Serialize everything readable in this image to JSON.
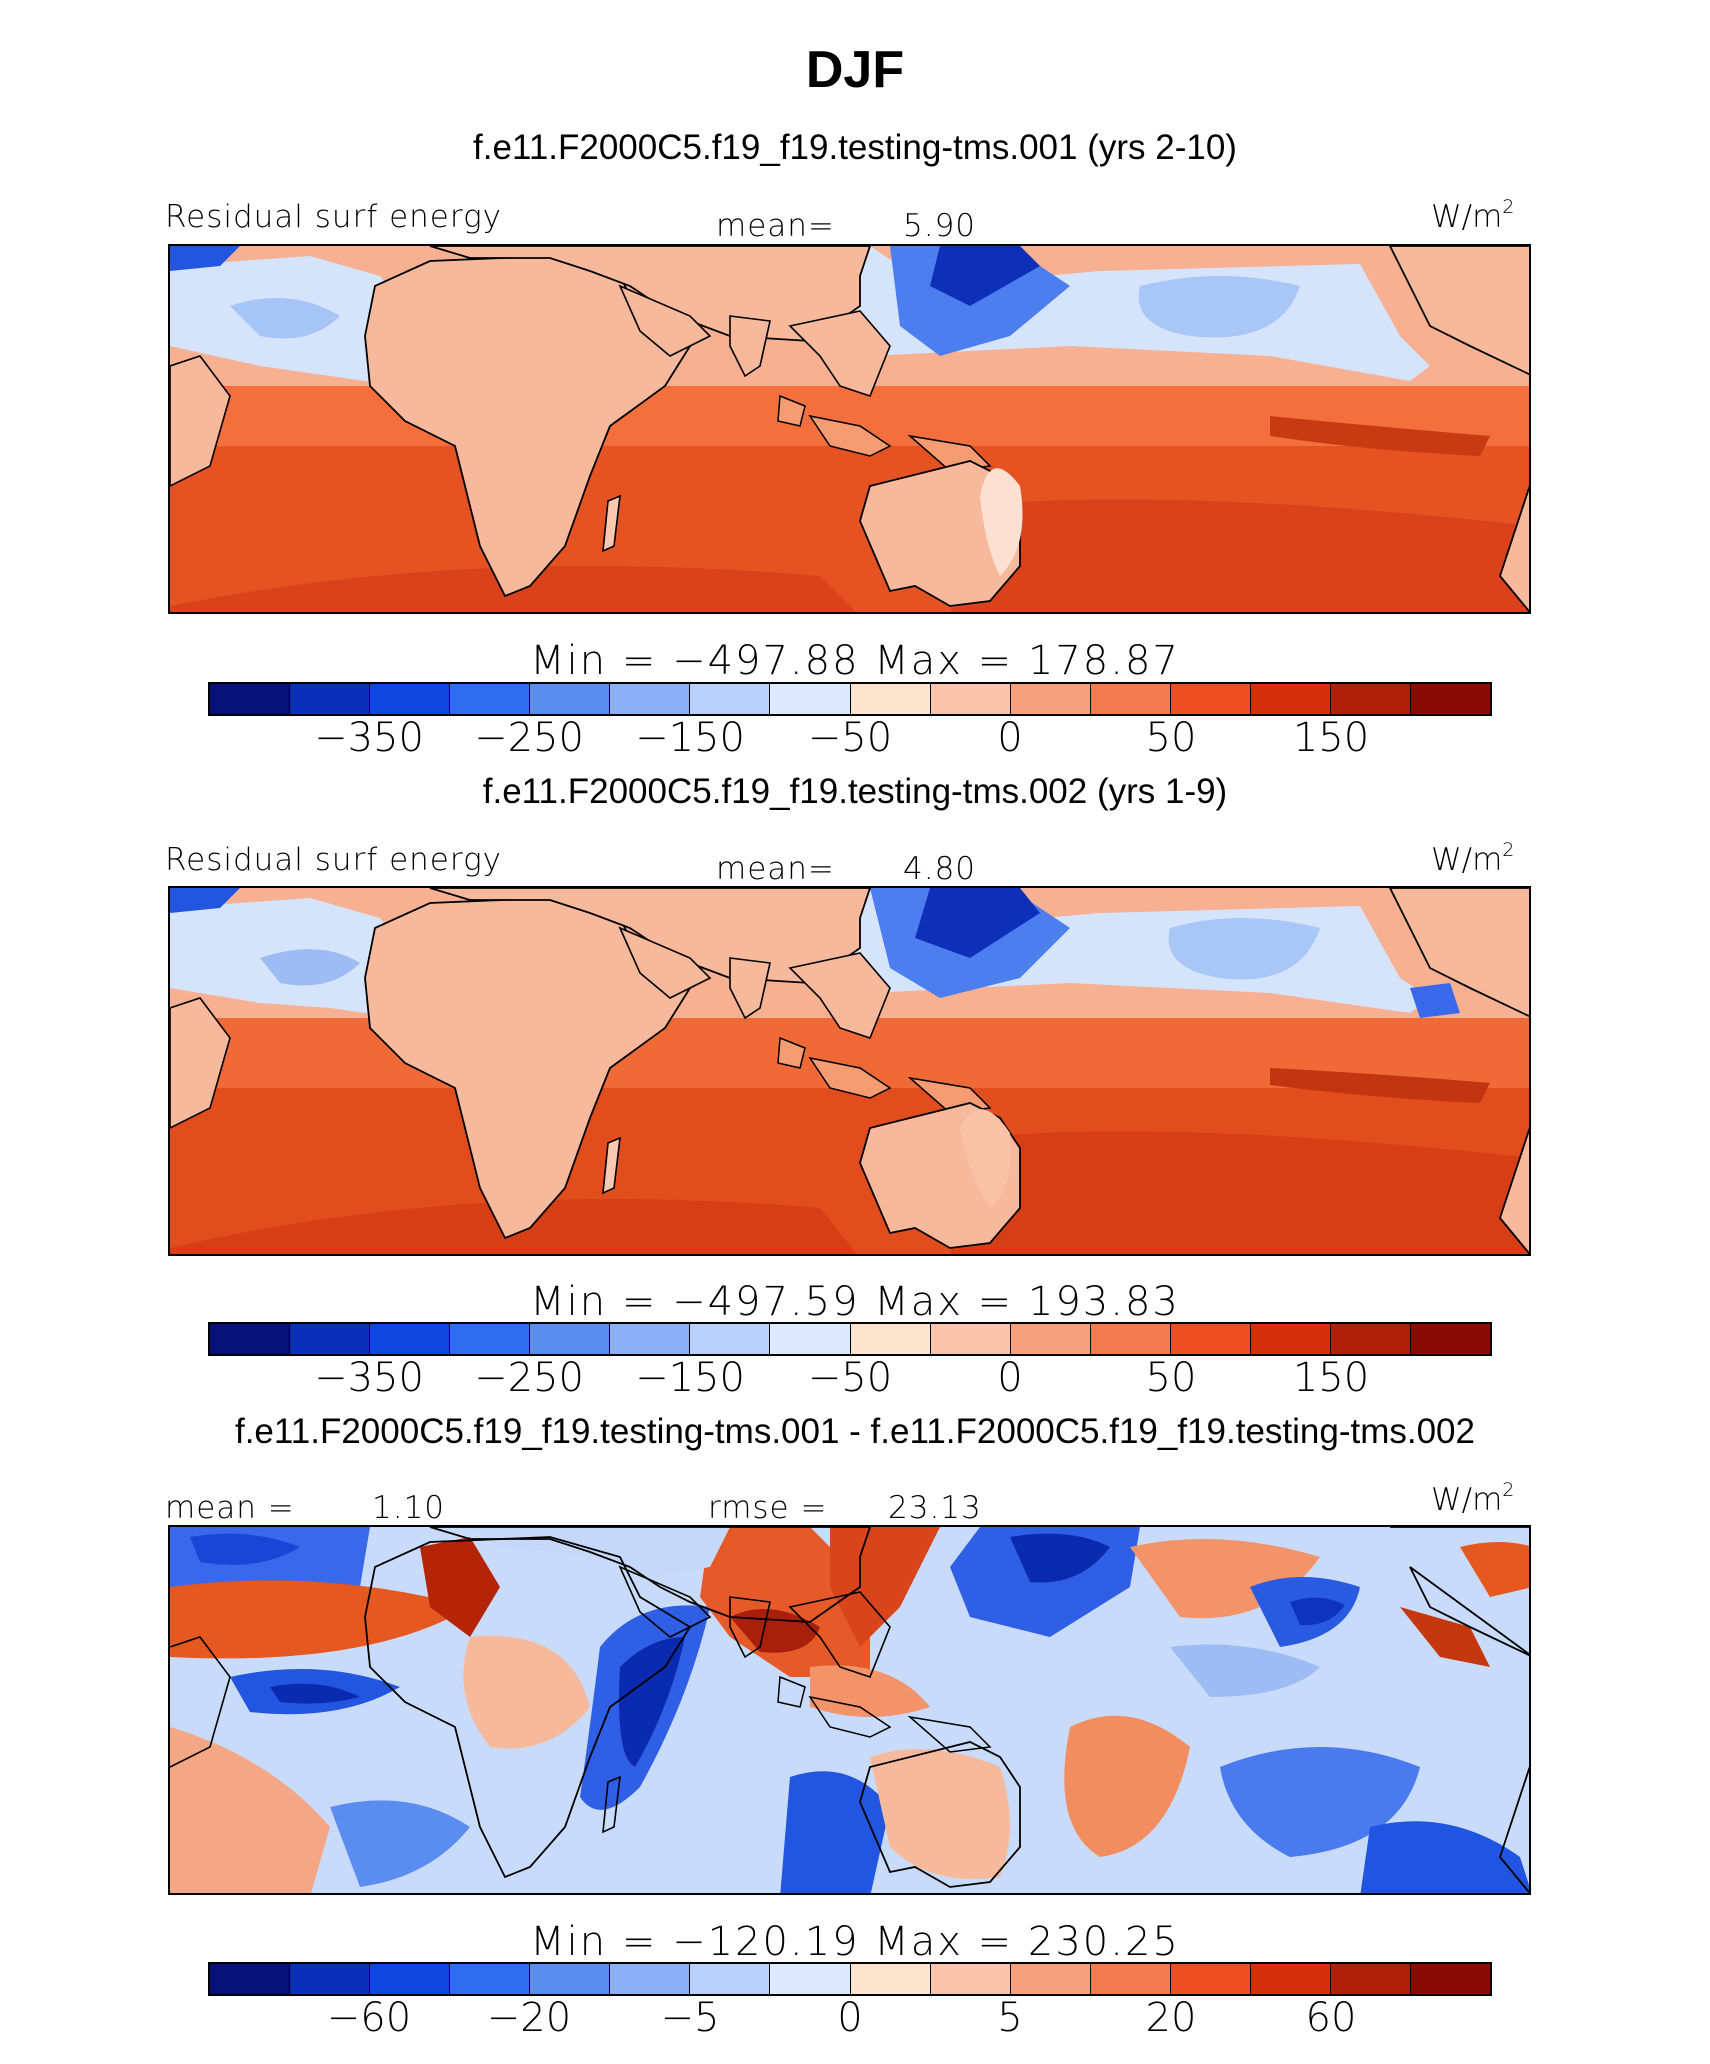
{
  "title": "DJF",
  "units": {
    "base": "W/m",
    "exp": "2"
  },
  "panels": [
    {
      "case": "f.e11.F2000C5.f19_f19.testing-tms.001 (yrs 2-10)",
      "variable": "Residual surf energy",
      "mean_label": "mean=",
      "mean_value": "5.90",
      "stats": "Min = −497.88 Max = 178.87",
      "colorbar_ticks": [
        "−350",
        "−250",
        "−150",
        "−50",
        "0",
        "50",
        "150"
      ]
    },
    {
      "case": "f.e11.F2000C5.f19_f19.testing-tms.002 (yrs 1-9)",
      "variable": "Residual surf energy",
      "mean_label": "mean=",
      "mean_value": "4.80",
      "stats": "Min = −497.59 Max = 193.83",
      "colorbar_ticks": [
        "−350",
        "−250",
        "−150",
        "−50",
        "0",
        "50",
        "150"
      ]
    },
    {
      "case": "f.e11.F2000C5.f19_f19.testing-tms.001 - f.e11.F2000C5.f19_f19.testing-tms.002",
      "mean_label": "mean =",
      "mean_value": "1.10",
      "rmse_label": "rmse =",
      "rmse_value": "23.13",
      "stats": "Min = −120.19 Max = 230.25",
      "colorbar_ticks": [
        "−60",
        "−20",
        "−5",
        "0",
        "5",
        "20",
        "60"
      ]
    }
  ],
  "colorbar_colors": [
    "#08107a",
    "#0a2fb8",
    "#0f47e0",
    "#2f6cf0",
    "#5b8cf0",
    "#8cb0f5",
    "#b8d0fa",
    "#dde9fc",
    "#fde4cf",
    "#f9c4a9",
    "#f7a07e",
    "#f47a4f",
    "#ed4f22",
    "#d42e0c",
    "#b01f0a",
    "#8a0b05"
  ],
  "field_colors": {
    "ocean_south": "#e04a1c",
    "ocean_eq": "#f06232",
    "ocean_mid": "#f8a887",
    "land": "#f7b99b",
    "land_dark": "#f29b74",
    "north_pale": "#d3e3fb",
    "north_blue": "#9dbef5",
    "deep_blue": "#1f55e0",
    "navy": "#0a2ab0",
    "dark_red": "#c42a0c"
  }
}
